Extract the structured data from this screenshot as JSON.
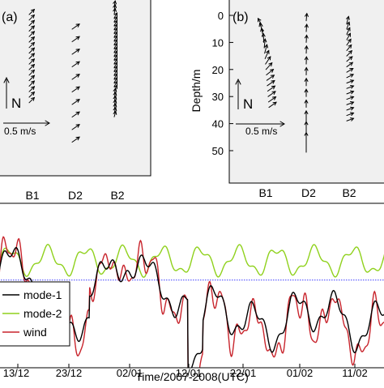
{
  "chart_data": [
    {
      "type": "vector",
      "panel_label": "(a)",
      "north_label": "N",
      "scale_label": "0.5 m/s",
      "stations": [
        "B1",
        "D2",
        "B2"
      ],
      "arrow_counts": [
        17,
        10,
        30
      ],
      "grid": false
    },
    {
      "type": "vector",
      "panel_label": "(b)",
      "ylabel": "Depth/m",
      "yticks": [
        0,
        10,
        20,
        30,
        40,
        50
      ],
      "ylim": [
        -3,
        60
      ],
      "reversed_y": true,
      "north_label": "N",
      "scale_label": "0.5 m/s",
      "stations": [
        "B1",
        "D2",
        "B2"
      ],
      "profiles": [
        {
          "station": "B1",
          "depths": [
            4,
            6,
            8,
            10,
            12,
            14,
            16,
            18,
            20,
            22,
            24,
            26,
            28,
            30,
            32,
            34
          ]
        },
        {
          "station": "D2",
          "depths": [
            2,
            6,
            10,
            14,
            18,
            22,
            26,
            30,
            34,
            38,
            42,
            46
          ]
        },
        {
          "station": "B2",
          "depths": [
            3,
            5,
            7,
            9,
            11,
            13,
            15,
            17,
            19,
            21,
            23,
            25,
            27,
            29,
            31,
            33,
            35,
            37,
            39
          ]
        }
      ],
      "grid": false
    },
    {
      "type": "line",
      "xlabel": "Time/2007-2008(UTC)",
      "xticks": [
        "13/12",
        "23/12",
        "02/01",
        "12/01",
        "22/01",
        "01/02",
        "11/02"
      ],
      "ylim": [
        -1.6,
        1.4
      ],
      "zero_line": true,
      "legend_position": "bottom-left",
      "series": [
        {
          "name": "mode-1",
          "color": "#000000"
        },
        {
          "name": "mode-2",
          "color": "#8fd11c"
        },
        {
          "name": "wind",
          "color": "#c8242c"
        }
      ],
      "zero_line_color": "#3a3aff",
      "grid": false
    }
  ]
}
